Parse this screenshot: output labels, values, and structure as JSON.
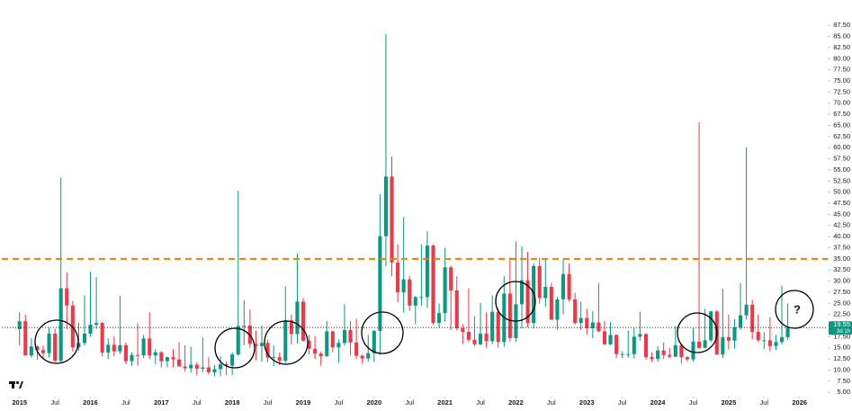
{
  "chart_data": {
    "type": "candlestick",
    "x": [
      "2015-01",
      "2015-02",
      "2015-03",
      "2015-04",
      "2015-05",
      "2015-06",
      "2015-07",
      "2015-08",
      "2015-09",
      "2015-10",
      "2015-11",
      "2015-12",
      "2016-01",
      "2016-02",
      "2016-03",
      "2016-04",
      "2016-05",
      "2016-06",
      "2016-07",
      "2016-08",
      "2016-09",
      "2016-10",
      "2016-11",
      "2016-12",
      "2017-01",
      "2017-02",
      "2017-03",
      "2017-04",
      "2017-05",
      "2017-06",
      "2017-07",
      "2017-08",
      "2017-09",
      "2017-10",
      "2017-11",
      "2017-12",
      "2018-01",
      "2018-02",
      "2018-03",
      "2018-04",
      "2018-05",
      "2018-06",
      "2018-07",
      "2018-08",
      "2018-09",
      "2018-10",
      "2018-11",
      "2018-12",
      "2019-01",
      "2019-02",
      "2019-03",
      "2019-04",
      "2019-05",
      "2019-06",
      "2019-07",
      "2019-08",
      "2019-09",
      "2019-10",
      "2019-11",
      "2019-12",
      "2020-01",
      "2020-02",
      "2020-03",
      "2020-04",
      "2020-05",
      "2020-06",
      "2020-07",
      "2020-08",
      "2020-09",
      "2020-10",
      "2020-11",
      "2020-12",
      "2021-01",
      "2021-02",
      "2021-03",
      "2021-04",
      "2021-05",
      "2021-06",
      "2021-07",
      "2021-08",
      "2021-09",
      "2021-10",
      "2021-11",
      "2021-12",
      "2022-01",
      "2022-02",
      "2022-03",
      "2022-04",
      "2022-05",
      "2022-06",
      "2022-07",
      "2022-08",
      "2022-09",
      "2022-10",
      "2022-11",
      "2022-12",
      "2023-01",
      "2023-02",
      "2023-03",
      "2023-04",
      "2023-05",
      "2023-06",
      "2023-07",
      "2023-08",
      "2023-09",
      "2023-10",
      "2023-11",
      "2023-12",
      "2024-01",
      "2024-02",
      "2024-03",
      "2024-04",
      "2024-05",
      "2024-06",
      "2024-07",
      "2024-08",
      "2024-09",
      "2024-10",
      "2024-11",
      "2024-12",
      "2025-01",
      "2025-02",
      "2025-03",
      "2025-04",
      "2025-05",
      "2025-06",
      "2025-07",
      "2025-08",
      "2025-09",
      "2025-10",
      "2025-11"
    ],
    "open": [
      19.2,
      21,
      13.3,
      15.3,
      14.5,
      13.8,
      18.2,
      12.1,
      28.4,
      24.5,
      15.1,
      16.1,
      18.2,
      20.2,
      20.6,
      13.95,
      15.7,
      14.2,
      15.6,
      12.0,
      13.4,
      13.3,
      17.1,
      13.3,
      14.0,
      12.0,
      12.9,
      12.4,
      10.8,
      10.4,
      11.2,
      10.3,
      10.6,
      9.5,
      10.2,
      11.3,
      11.0,
      13.5,
      19.9,
      20,
      15.9,
      15.4,
      16.1,
      12.8,
      12.9,
      12.1,
      21.2,
      18.1,
      25.4,
      16.6,
      14.8,
      13.7,
      13.1,
      18.7,
      15.1,
      16.1,
      19,
      16.2,
      13.2,
      12.6,
      13.8,
      18.8,
      40.1,
      53.5,
      34.2,
      27.5,
      30.4,
      24.5,
      26.4,
      26.4,
      38.0,
      20.6,
      22.8,
      33.1,
      27.9,
      19.4,
      18.6,
      16.8,
      15.8,
      18.2,
      16.5,
      23.1,
      16.3,
      27.2,
      17.2,
      24.8,
      30.2,
      20.6,
      33.4,
      26.2,
      28.7,
      21.3,
      25.9,
      31.6,
      25.9,
      20.6,
      21.7,
      19.4,
      20.7,
      18.7,
      15.8,
      17.9,
      13.6,
      13.6,
      13.6,
      17.5,
      18.1,
      12.9,
      12.5,
      14.4,
      13.4,
      13.0,
      15.6,
      12.9,
      12.4,
      16.4,
      15.0,
      16.7,
      23.2,
      13.5,
      17.4,
      16.6,
      19.6,
      22.3,
      24.7,
      18.6,
      16.7,
      16.7,
      15.4,
      16.3,
      17.4
    ],
    "high": [
      23,
      22.5,
      17.2,
      15.6,
      15.5,
      19.5,
      19.3,
      53.3,
      32,
      25.5,
      20.7,
      26.8,
      32.1,
      30.9,
      20.8,
      17.1,
      17.6,
      26.7,
      16.2,
      14.0,
      20.5,
      17.9,
      23.0,
      14.7,
      14.2,
      13.0,
      14.7,
      16.3,
      15.6,
      15.2,
      11.8,
      17.3,
      12.9,
      11.1,
      13.1,
      12.0,
      14.0,
      50.3,
      25.7,
      23.6,
      18.9,
      20.0,
      16.8,
      15.5,
      14.0,
      28.8,
      22.5,
      36.2,
      26.2,
      17.9,
      17.6,
      14.1,
      21.0,
      18.9,
      16.9,
      24.8,
      21.0,
      21.5,
      13.5,
      17.9,
      19.0,
      49.5,
      85.5,
      58.0,
      38.3,
      44.4,
      31.2,
      26.7,
      38.3,
      41.2,
      38.3,
      25.0,
      37.5,
      33.5,
      31.1,
      20.3,
      28.4,
      22.1,
      25.1,
      23.0,
      26.8,
      23.8,
      31.1,
      35.3,
      38.9,
      37.8,
      36.6,
      34.0,
      35.3,
      35.1,
      29.6,
      26.5,
      34.9,
      34.0,
      27.4,
      25.4,
      23.8,
      23.2,
      29.6,
      21.0,
      20.8,
      18.0,
      14.2,
      18.9,
      19.4,
      23.1,
      18.3,
      14.0,
      15.4,
      16.2,
      15.0,
      19.9,
      15.9,
      13.2,
      19.4,
      65.7,
      23.8,
      23.3,
      23.4,
      28.3,
      22.5,
      21.5,
      29.6,
      60.1,
      25.8,
      22.5,
      18.5,
      21.9,
      17.9,
      28.99,
      25.0
    ],
    "low": [
      15.5,
      13.3,
      12.8,
      12.3,
      12.4,
      12.8,
      11.8,
      11.6,
      19.2,
      14.2,
      14.3,
      15.5,
      17.5,
      19.3,
      13.1,
      12.5,
      13.1,
      13.6,
      11.3,
      11.0,
      11.0,
      12.7,
      12.5,
      11.3,
      10.6,
      10.6,
      10.6,
      10.8,
      9.6,
      9.4,
      8.8,
      9.5,
      9.0,
      8.6,
      8.6,
      8.9,
      8.9,
      13.2,
      15.6,
      15.0,
      12.2,
      11.9,
      11.8,
      10.9,
      11.1,
      11.6,
      15.8,
      16.0,
      16.4,
      13.5,
      12.5,
      11.0,
      13.0,
      14.0,
      11.7,
      15.5,
      13.3,
      12.5,
      11.4,
      11.9,
      11.8,
      13.4,
      33.4,
      31.1,
      25.2,
      22.9,
      23.3,
      20.3,
      24.5,
      24.0,
      20.2,
      19.5,
      20.9,
      19.0,
      18.9,
      15.9,
      16.3,
      15.4,
      15.6,
      15.0,
      15.8,
      15.0,
      15.2,
      16.4,
      16.3,
      19.4,
      19.6,
      19.3,
      24.9,
      24.3,
      21.3,
      19.1,
      22.5,
      25.4,
      20.2,
      19.0,
      17.9,
      17.1,
      18.5,
      15.7,
      15.6,
      12.7,
      12.7,
      12.8,
      12.6,
      16.6,
      12.3,
      11.8,
      11.9,
      12.5,
      12.7,
      12.9,
      11.5,
      11.9,
      11.9,
      14.7,
      14.9,
      16.3,
      13.4,
      12.7,
      14.6,
      14.8,
      19.0,
      21.4,
      16.9,
      16.3,
      14.7,
      14.2,
      14.5,
      15.7,
      16.8
    ],
    "close": [
      20.97,
      13.3,
      15.3,
      14.5,
      13.8,
      18.2,
      12.1,
      28.4,
      24.5,
      15.1,
      16.1,
      18.2,
      20.2,
      20.6,
      13.95,
      15.7,
      14.2,
      15.6,
      12.0,
      13.4,
      13.3,
      17.1,
      13.3,
      14.0,
      11.99,
      12.9,
      12.4,
      10.8,
      10.4,
      11.2,
      10.3,
      10.6,
      9.5,
      10.2,
      11.3,
      11.0,
      13.5,
      19.9,
      19.97,
      15.9,
      15.4,
      16.1,
      12.8,
      12.9,
      12.1,
      21.2,
      18.1,
      25.4,
      16.6,
      14.8,
      13.7,
      13.1,
      18.7,
      15.1,
      16.1,
      18.98,
      16.2,
      13.2,
      12.6,
      13.8,
      18.8,
      40.1,
      53.5,
      34.2,
      27.5,
      30.4,
      24.5,
      26.4,
      26.4,
      38.0,
      20.6,
      22.8,
      33.1,
      27.9,
      19.4,
      18.6,
      16.8,
      15.8,
      18.2,
      16.5,
      23.1,
      16.3,
      27.2,
      17.2,
      24.8,
      30.2,
      20.6,
      33.4,
      26.2,
      28.7,
      21.3,
      25.9,
      31.6,
      25.9,
      20.6,
      21.7,
      19.4,
      20.7,
      18.7,
      15.8,
      17.9,
      13.6,
      13.6,
      13.6,
      17.5,
      18.1,
      12.9,
      12.5,
      14.4,
      13.4,
      13.0,
      15.6,
      12.9,
      12.4,
      16.4,
      15.0,
      16.7,
      23.2,
      13.5,
      17.4,
      16.6,
      19.6,
      22.3,
      24.7,
      18.6,
      16.7,
      16.7,
      15.4,
      16.3,
      17.4,
      19.55
    ],
    "up_color": "#089981",
    "down_color": "#f23645",
    "xlim": [
      "2014-10",
      "2026-05"
    ],
    "xticks": [
      {
        "value": "2015-01",
        "label": "2015"
      },
      {
        "value": "2015-07",
        "label": "Jul"
      },
      {
        "value": "2016-01",
        "label": "2016"
      },
      {
        "value": "2016-07",
        "label": "Jul"
      },
      {
        "value": "2017-01",
        "label": "2017"
      },
      {
        "value": "2017-07",
        "label": "Jul"
      },
      {
        "value": "2018-01",
        "label": "2018"
      },
      {
        "value": "2018-07",
        "label": "Jul"
      },
      {
        "value": "2019-01",
        "label": "2019"
      },
      {
        "value": "2019-07",
        "label": "Jul"
      },
      {
        "value": "2020-01",
        "label": "2020"
      },
      {
        "value": "2020-07",
        "label": "Jul"
      },
      {
        "value": "2021-01",
        "label": "2021"
      },
      {
        "value": "2021-07",
        "label": "Jul"
      },
      {
        "value": "2022-01",
        "label": "2022"
      },
      {
        "value": "2022-07",
        "label": "Jul"
      },
      {
        "value": "2023-01",
        "label": "2023"
      },
      {
        "value": "2023-07",
        "label": "Jul"
      },
      {
        "value": "2024-01",
        "label": "2024"
      },
      {
        "value": "2024-07",
        "label": "Jul"
      },
      {
        "value": "2025-01",
        "label": "2025"
      },
      {
        "value": "2025-07",
        "label": "Jul"
      },
      {
        "value": "2026-01",
        "label": "2026"
      }
    ],
    "ylim": [
      1,
      93
    ],
    "yticks": [
      {
        "value": 5,
        "label": "5.00"
      },
      {
        "value": 7.5,
        "label": "7.50"
      },
      {
        "value": 10,
        "label": "10.00"
      },
      {
        "value": 12.5,
        "label": "12.50"
      },
      {
        "value": 15,
        "label": "15.00"
      },
      {
        "value": 17.5,
        "label": "17.50"
      },
      {
        "value": 20,
        "label": "20.00"
      },
      {
        "value": 22.5,
        "label": "22.50"
      },
      {
        "value": 25,
        "label": "25.00"
      },
      {
        "value": 27.5,
        "label": "27.50"
      },
      {
        "value": 30,
        "label": "30.00"
      },
      {
        "value": 32.5,
        "label": "32.50"
      },
      {
        "value": 35,
        "label": "35.00"
      },
      {
        "value": 37.5,
        "label": "37.50"
      },
      {
        "value": 40,
        "label": "40.00"
      },
      {
        "value": 42.5,
        "label": "42.50"
      },
      {
        "value": 45,
        "label": "45.00"
      },
      {
        "value": 47.5,
        "label": "47.50"
      },
      {
        "value": 50,
        "label": "50.00"
      },
      {
        "value": 52.5,
        "label": "52.50"
      },
      {
        "value": 55,
        "label": "55.00"
      },
      {
        "value": 57.5,
        "label": "57.50"
      },
      {
        "value": 60,
        "label": "60.00"
      },
      {
        "value": 62.5,
        "label": "62.50"
      },
      {
        "value": 65,
        "label": "65.00"
      },
      {
        "value": 67.5,
        "label": "67.50"
      },
      {
        "value": 70,
        "label": "70.00"
      },
      {
        "value": 72.5,
        "label": "72.50"
      },
      {
        "value": 75,
        "label": "75.00"
      },
      {
        "value": 77.5,
        "label": "77.50"
      },
      {
        "value": 80,
        "label": "80.00"
      },
      {
        "value": 82.5,
        "label": "82.50"
      },
      {
        "value": 85,
        "label": "85.00"
      },
      {
        "value": 87.5,
        "label": "87.50"
      }
    ],
    "hlines": [
      {
        "value": 35,
        "color": "#f57c00"
      }
    ],
    "last_price": {
      "value": 19.55,
      "countdown": "3d 1h",
      "color": "#089981"
    },
    "annotation": "?"
  }
}
